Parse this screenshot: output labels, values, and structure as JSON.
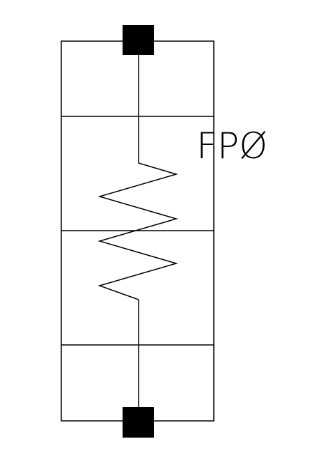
{
  "diagram": {
    "label": "FPØ",
    "stroke_color": "#000000",
    "background_color": "#ffffff",
    "connector_icon": "square-terminal-icon"
  }
}
